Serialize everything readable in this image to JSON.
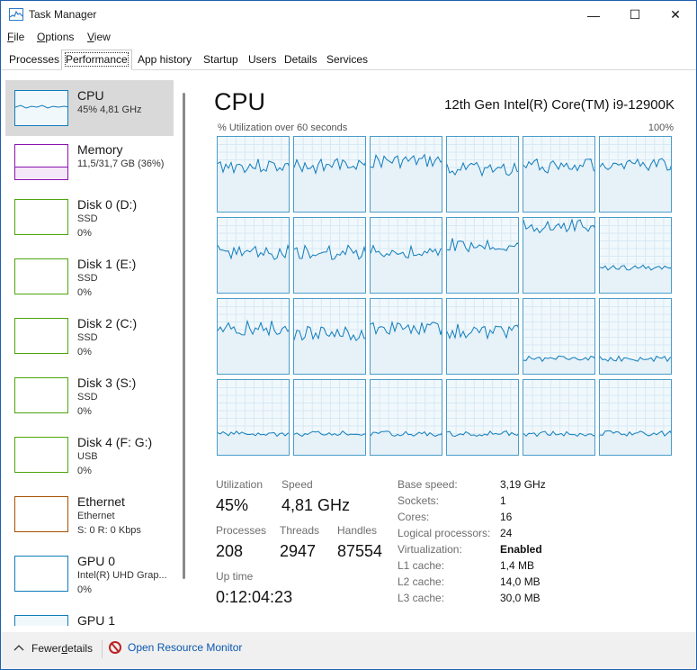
{
  "window": {
    "title": "Task Manager",
    "buttons": {
      "minimize": "—",
      "maximize": "☐",
      "close": "✕"
    }
  },
  "menu": [
    {
      "label_first": "F",
      "label_rest": "ile"
    },
    {
      "label_first": "O",
      "label_rest": "ptions"
    },
    {
      "label_first": "V",
      "label_rest": "iew"
    }
  ],
  "tabs": [
    "Processes",
    "Performance",
    "App history",
    "Startup",
    "Users",
    "Details",
    "Services"
  ],
  "sidebar": [
    {
      "name": "CPU",
      "sub1": "45%  4,81 GHz",
      "sub2": "",
      "color": "#117dbb"
    },
    {
      "name": "Memory",
      "sub1": "11,5/31,7 GB (36%)",
      "sub2": "",
      "color": "#8b12ae"
    },
    {
      "name": "Disk 0 (D:)",
      "sub1": "SSD",
      "sub2": "0%",
      "color": "#4da60c"
    },
    {
      "name": "Disk 1 (E:)",
      "sub1": "SSD",
      "sub2": "0%",
      "color": "#4da60c"
    },
    {
      "name": "Disk 2 (C:)",
      "sub1": "SSD",
      "sub2": "0%",
      "color": "#4da60c"
    },
    {
      "name": "Disk 3 (S:)",
      "sub1": "SSD",
      "sub2": "0%",
      "color": "#4da60c"
    },
    {
      "name": "Disk 4 (F: G:)",
      "sub1": "USB",
      "sub2": "0%",
      "color": "#4da60c"
    },
    {
      "name": "Ethernet",
      "sub1": "Ethernet",
      "sub2": "S: 0  R: 0 Kbps",
      "color": "#a74f01"
    },
    {
      "name": "GPU 0",
      "sub1": "Intel(R) UHD Grap...",
      "sub2": "0%",
      "color": "#117dbb"
    },
    {
      "name": "GPU 1",
      "sub1": "",
      "sub2": "",
      "color": "#117dbb"
    }
  ],
  "main": {
    "title": "CPU",
    "model": "12th Gen Intel(R) Core(TM) i9-12900K",
    "graph_label": "% Utilization over 60 seconds",
    "graph_max": "100%",
    "core_levels": [
      0.62,
      0.62,
      0.68,
      0.58,
      0.62,
      0.65,
      0.55,
      0.55,
      0.55,
      0.65,
      0.9,
      0.35,
      0.62,
      0.55,
      0.62,
      0.58,
      0.22,
      0.22,
      0.3,
      0.3,
      0.3,
      0.3,
      0.3,
      0.3
    ],
    "stats": {
      "utilization_label": "Utilization",
      "utilization": "45%",
      "speed_label": "Speed",
      "speed": "4,81 GHz",
      "processes_label": "Processes",
      "processes": "208",
      "threads_label": "Threads",
      "threads": "2947",
      "handles_label": "Handles",
      "handles": "87554",
      "uptime_label": "Up time",
      "uptime": "0:12:04:23"
    },
    "specs": [
      {
        "label": "Base speed:",
        "value": "3,19 GHz",
        "bold": false
      },
      {
        "label": "Sockets:",
        "value": "1",
        "bold": false
      },
      {
        "label": "Cores:",
        "value": "16",
        "bold": false
      },
      {
        "label": "Logical processors:",
        "value": "24",
        "bold": false
      },
      {
        "label": "Virtualization:",
        "value": "Enabled",
        "bold": true
      },
      {
        "label": "L1 cache:",
        "value": "1,4 MB",
        "bold": false
      },
      {
        "label": "L2 cache:",
        "value": "14,0 MB",
        "bold": false
      },
      {
        "label": "L3 cache:",
        "value": "30,0 MB",
        "bold": false
      }
    ]
  },
  "footer": {
    "fewer_first": "Fewer ",
    "fewer_ul": "d",
    "fewer_rest": "etails",
    "resource_monitor": "Open Resource Monitor"
  }
}
